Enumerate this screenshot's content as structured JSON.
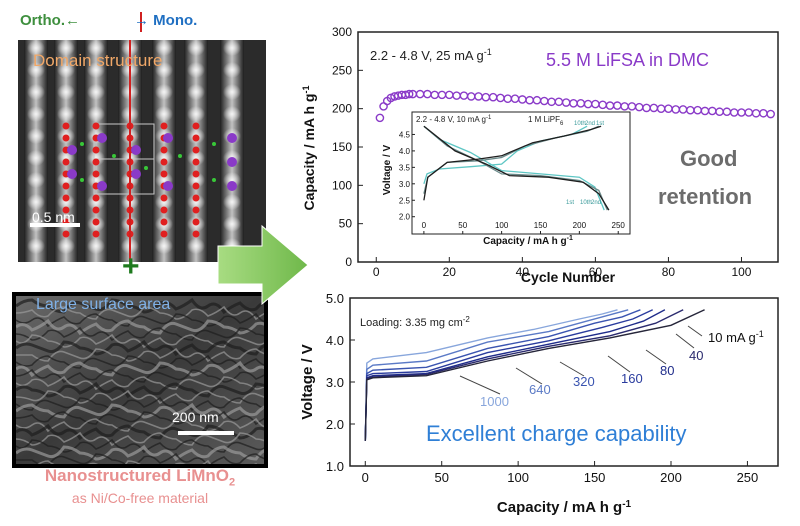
{
  "left": {
    "ortho_label": "Ortho.←",
    "mono_label": "→ Mono.",
    "domain_label": "Domain structure",
    "scale_label": "0.5 nm",
    "surface_label": "Large surface area",
    "sem_scale_label": "200 nm",
    "material_line1": "Nanostructured LiMnO",
    "material_sub": "2",
    "material_line2": "as Ni/Co-free material",
    "plus": "+"
  },
  "colors": {
    "purple": "#8a3ac8",
    "blue_text": "#2f7fd6",
    "gray_text": "#6c6c6c",
    "arrow": "#8fcf6a"
  },
  "chart_data": [
    {
      "type": "scatter",
      "title": "5.5 M LiFSA in DMC",
      "condition": "2.2 - 4.8 V, 25 mA g",
      "condition_sup": "-1",
      "annotation": [
        "Good",
        "retention"
      ],
      "xlabel": "Cycle Number",
      "ylabel": "Capacity  /  mA h g",
      "ylabel_sup": "-1",
      "xlim": [
        -5,
        110
      ],
      "ylim": [
        0,
        300
      ],
      "xticks": [
        0,
        20,
        40,
        60,
        80,
        100
      ],
      "yticks": [
        0,
        50,
        100,
        150,
        200,
        250,
        300
      ],
      "points": [
        [
          1,
          188
        ],
        [
          2,
          203
        ],
        [
          3,
          210
        ],
        [
          4,
          214
        ],
        [
          5,
          216
        ],
        [
          6,
          217
        ],
        [
          7,
          218
        ],
        [
          8,
          218
        ],
        [
          9,
          219
        ],
        [
          10,
          219
        ],
        [
          12,
          219
        ],
        [
          14,
          219
        ],
        [
          16,
          218
        ],
        [
          18,
          218
        ],
        [
          20,
          218
        ],
        [
          22,
          217
        ],
        [
          24,
          217
        ],
        [
          26,
          216
        ],
        [
          28,
          216
        ],
        [
          30,
          215
        ],
        [
          32,
          215
        ],
        [
          34,
          214
        ],
        [
          36,
          213
        ],
        [
          38,
          213
        ],
        [
          40,
          212
        ],
        [
          42,
          211
        ],
        [
          44,
          211
        ],
        [
          46,
          210
        ],
        [
          48,
          209
        ],
        [
          50,
          209
        ],
        [
          52,
          208
        ],
        [
          54,
          207
        ],
        [
          56,
          207
        ],
        [
          58,
          206
        ],
        [
          60,
          206
        ],
        [
          62,
          205
        ],
        [
          64,
          204
        ],
        [
          66,
          204
        ],
        [
          68,
          203
        ],
        [
          70,
          203
        ],
        [
          72,
          202
        ],
        [
          74,
          201
        ],
        [
          76,
          201
        ],
        [
          78,
          200
        ],
        [
          80,
          200
        ],
        [
          82,
          199
        ],
        [
          84,
          199
        ],
        [
          86,
          198
        ],
        [
          88,
          198
        ],
        [
          90,
          197
        ],
        [
          92,
          197
        ],
        [
          94,
          196
        ],
        [
          96,
          196
        ],
        [
          98,
          195
        ],
        [
          100,
          195
        ],
        [
          102,
          195
        ],
        [
          104,
          194
        ],
        [
          106,
          194
        ],
        [
          108,
          193
        ]
      ]
    },
    {
      "type": "line",
      "condition": "2.2 - 4.8 V, 10 mA g",
      "condition_sup": "-1",
      "electrolyte": "1 M LiPF",
      "electrolyte_sub": "6",
      "xlabel": "Capacity  /  mA h g",
      "xlabel_sup": "-1",
      "ylabel": "Voltage  /  V",
      "xlim": [
        -5,
        260
      ],
      "ylim": [
        1.9,
        5.0
      ],
      "xticks": [
        0,
        50,
        100,
        150,
        200,
        250
      ],
      "yticks": [
        2.0,
        2.5,
        3.0,
        3.5,
        4.0,
        4.5
      ],
      "cycle_labels": [
        "10th",
        "2nd",
        "1st"
      ],
      "series": [
        {
          "name": "1st",
          "color": "#5ec6c4",
          "charge": [
            [
              0,
              3.0
            ],
            [
              4,
              3.3
            ],
            [
              20,
              3.45
            ],
            [
              60,
              3.52
            ],
            [
              100,
              3.6
            ],
            [
              120,
              4.0
            ],
            [
              150,
              4.3
            ],
            [
              190,
              4.5
            ],
            [
              210,
              4.75
            ]
          ],
          "discharge": [
            [
              0,
              4.75
            ],
            [
              20,
              4.35
            ],
            [
              60,
              3.95
            ],
            [
              100,
              3.4
            ],
            [
              150,
              3.3
            ],
            [
              200,
              3.2
            ],
            [
              220,
              2.9
            ],
            [
              232,
              2.2
            ]
          ]
        },
        {
          "name": "2nd",
          "color": "#6a8a8a",
          "charge": [
            [
              0,
              2.7
            ],
            [
              5,
              3.2
            ],
            [
              30,
              3.65
            ],
            [
              70,
              3.7
            ],
            [
              100,
              3.8
            ],
            [
              130,
              4.15
            ],
            [
              170,
              4.4
            ],
            [
              210,
              4.6
            ],
            [
              225,
              4.75
            ]
          ],
          "discharge": [
            [
              0,
              4.75
            ],
            [
              30,
              4.15
            ],
            [
              70,
              3.7
            ],
            [
              100,
              3.3
            ],
            [
              150,
              3.25
            ],
            [
              200,
              3.1
            ],
            [
              225,
              2.8
            ],
            [
              236,
              2.2
            ]
          ]
        },
        {
          "name": "10th",
          "color": "#1e1e1e",
          "charge": [
            [
              0,
              2.5
            ],
            [
              5,
              3.2
            ],
            [
              30,
              3.65
            ],
            [
              70,
              3.75
            ],
            [
              100,
              3.85
            ],
            [
              140,
              4.25
            ],
            [
              180,
              4.45
            ],
            [
              215,
              4.65
            ],
            [
              228,
              4.75
            ]
          ],
          "discharge": [
            [
              0,
              4.75
            ],
            [
              40,
              4.0
            ],
            [
              80,
              3.6
            ],
            [
              110,
              3.25
            ],
            [
              160,
              3.2
            ],
            [
              205,
              3.05
            ],
            [
              225,
              2.7
            ],
            [
              238,
              2.2
            ]
          ]
        }
      ]
    },
    {
      "type": "line",
      "loading": "Loading: 3.35 mg cm",
      "loading_sup": "-2",
      "annotation": "Excellent charge capability",
      "xlabel": "Capacity  /  mA h g",
      "xlabel_sup": "-1",
      "ylabel": "Voltage  /  V",
      "xlim": [
        -10,
        270
      ],
      "ylim": [
        1.0,
        5.0
      ],
      "xticks": [
        0,
        50,
        100,
        150,
        200,
        250
      ],
      "yticks": [
        1.0,
        2.0,
        3.0,
        4.0,
        5.0
      ],
      "xtick_labels": [
        "0",
        "50",
        "100",
        "150",
        "200",
        "250"
      ],
      "ytick_labels": [
        "1.0",
        "2.0",
        "3.0",
        "4.0",
        "5.0"
      ],
      "rate_unit": "mA g",
      "rate_unit_sup": "-1",
      "series": [
        {
          "rate": "10",
          "label": "10 mA g",
          "color": "#26263a",
          "points": [
            [
              0,
              1.6
            ],
            [
              1,
              3.05
            ],
            [
              5,
              3.1
            ],
            [
              40,
              3.15
            ],
            [
              80,
              3.5
            ],
            [
              120,
              3.8
            ],
            [
              160,
              4.05
            ],
            [
              200,
              4.35
            ],
            [
              222,
              4.72
            ]
          ]
        },
        {
          "rate": "40",
          "label": "40",
          "color": "#2a2a6e",
          "points": [
            [
              0,
              1.6
            ],
            [
              1,
              3.08
            ],
            [
              5,
              3.12
            ],
            [
              40,
              3.18
            ],
            [
              80,
              3.55
            ],
            [
              120,
              3.85
            ],
            [
              160,
              4.1
            ],
            [
              190,
              4.4
            ],
            [
              208,
              4.72
            ]
          ]
        },
        {
          "rate": "80",
          "label": "80",
          "color": "#1f2c8a",
          "points": [
            [
              0,
              1.6
            ],
            [
              1,
              3.1
            ],
            [
              5,
              3.15
            ],
            [
              40,
              3.2
            ],
            [
              80,
              3.6
            ],
            [
              120,
              3.9
            ],
            [
              160,
              4.2
            ],
            [
              182,
              4.45
            ],
            [
              196,
              4.72
            ]
          ]
        },
        {
          "rate": "160",
          "label": "160",
          "color": "#2a3c9e",
          "points": [
            [
              0,
              1.6
            ],
            [
              1,
              3.15
            ],
            [
              5,
              3.2
            ],
            [
              40,
              3.25
            ],
            [
              80,
              3.7
            ],
            [
              120,
              3.98
            ],
            [
              155,
              4.3
            ],
            [
              175,
              4.5
            ],
            [
              188,
              4.72
            ]
          ]
        },
        {
          "rate": "320",
          "label": "320",
          "color": "#3a54b0",
          "points": [
            [
              0,
              1.6
            ],
            [
              1,
              3.2
            ],
            [
              5,
              3.28
            ],
            [
              40,
              3.35
            ],
            [
              80,
              3.8
            ],
            [
              120,
              4.08
            ],
            [
              150,
              4.4
            ],
            [
              168,
              4.55
            ],
            [
              180,
              4.72
            ]
          ]
        },
        {
          "rate": "640",
          "label": "640",
          "color": "#5b7ac6",
          "points": [
            [
              0,
              1.6
            ],
            [
              1,
              3.3
            ],
            [
              5,
              3.4
            ],
            [
              40,
              3.5
            ],
            [
              80,
              3.95
            ],
            [
              120,
              4.2
            ],
            [
              145,
              4.45
            ],
            [
              160,
              4.6
            ],
            [
              172,
              4.72
            ]
          ]
        },
        {
          "rate": "1000",
          "label": "1000",
          "color": "#88a6dc",
          "points": [
            [
              0,
              1.6
            ],
            [
              1,
              3.45
            ],
            [
              5,
              3.55
            ],
            [
              40,
              3.7
            ],
            [
              80,
              4.05
            ],
            [
              110,
              4.25
            ],
            [
              140,
              4.5
            ],
            [
              155,
              4.62
            ],
            [
              165,
              4.72
            ]
          ]
        }
      ]
    }
  ]
}
